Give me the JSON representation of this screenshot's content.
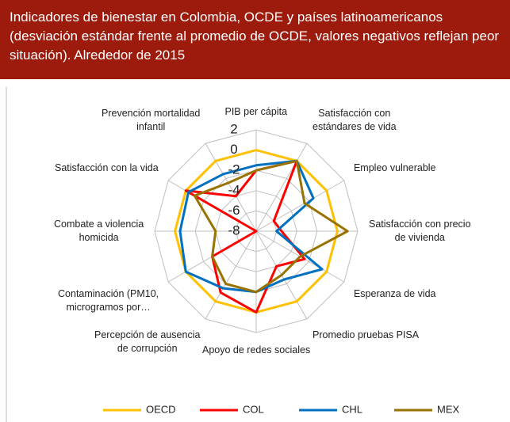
{
  "chart_data": {
    "type": "radar",
    "title": "Indicadores de bienestar en Colombia, OCDE y países latinoamericanos (desviación estándar frente al promedio de OCDE, valores negativos reflejan peor situación). Alrededor de 2015",
    "categories": [
      "PIB per cápita",
      "Satisfacción con\nestándares de vida",
      "Empleo vulnerable",
      "Satisfacción con precio\nde vivienda",
      "Esperanza de vida",
      "Promedio pruebas PISA",
      "Apoyo de redes sociales",
      "Percepción de ausencia\nde corrupción",
      "Contaminación (PM10,\nmicrogramos por…",
      "Combate a violencia\nhomicida",
      "Satisfacción con la vida",
      "Prevención mortalidad\ninfantil"
    ],
    "series": [
      {
        "name": "OECD",
        "color": "#ffc000",
        "values": [
          0,
          0,
          0,
          0,
          0,
          0,
          0,
          0,
          0,
          0,
          0,
          0
        ]
      },
      {
        "name": "COL",
        "color": "#ff0000",
        "values": [
          -2,
          0,
          -6,
          -5.5,
          -2.5,
          -4,
          0,
          -1,
          -3,
          -8,
          0,
          -4
        ]
      },
      {
        "name": "CHL",
        "color": "#0070c0",
        "values": [
          -1.5,
          0,
          -1.5,
          -6,
          -0.5,
          -2.5,
          -2,
          -1.5,
          0,
          -0.5,
          -0.3,
          -1.5
        ]
      },
      {
        "name": "MEX",
        "color": "#997300",
        "values": [
          -2,
          0,
          -2.5,
          1,
          -3,
          -3,
          -2,
          -2,
          -3,
          -4,
          -1,
          -2.5
        ]
      }
    ],
    "ylim": [
      -8,
      2
    ],
    "yticks": [
      2,
      0,
      -2,
      -4,
      -6,
      -8
    ],
    "grid": true,
    "legend": "bottom"
  }
}
